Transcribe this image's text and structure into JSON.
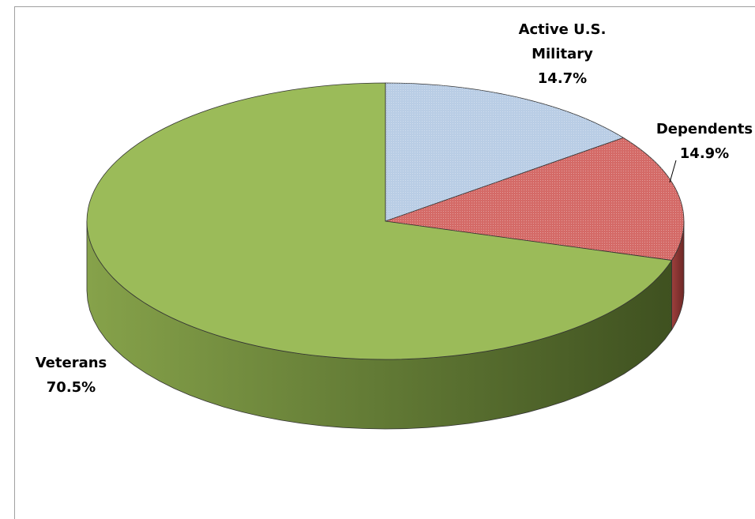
{
  "chart_data": {
    "type": "pie",
    "categories": [
      "Active U.S. Military",
      "Dependents",
      "Veterans"
    ],
    "values": [
      14.7,
      14.9,
      70.5
    ],
    "value_labels": [
      "14.7%",
      "14.9%",
      "70.5%"
    ],
    "colors": [
      "#b9cde5",
      "#d46a67",
      "#9bbb59"
    ]
  }
}
